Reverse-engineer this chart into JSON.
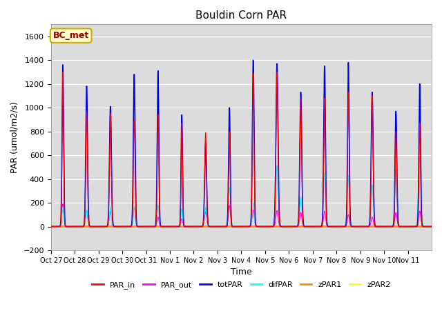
{
  "title": "Bouldin Corn PAR",
  "xlabel": "Time",
  "ylabel": "PAR (umol/m2/s)",
  "ylim": [
    -200,
    1700
  ],
  "yticks": [
    -200,
    0,
    200,
    400,
    600,
    800,
    1000,
    1200,
    1400,
    1600
  ],
  "bg_color": "#dcdcdc",
  "legend_entries": [
    "PAR_in",
    "PAR_out",
    "totPAR",
    "difPAR",
    "zPAR1",
    "zPAR2"
  ],
  "legend_colors": [
    "#ff0000",
    "#ff00ff",
    "#0000ee",
    "#00ffff",
    "#ff8800",
    "#ffff00"
  ],
  "annotation_text": "BC_met",
  "annotation_box_color": "#ffffcc",
  "annotation_text_color": "#990000",
  "annotation_edge_color": "#ccaa00",
  "n_days": 16,
  "xtick_labels": [
    "Oct 27",
    "Oct 28",
    "Oct 29",
    "Oct 30",
    "Oct 31",
    "Nov 1",
    "Nov 2",
    "Nov 3",
    "Nov 4",
    "Nov 5",
    "Nov 6",
    "Nov 7",
    "Nov 8",
    "Nov 9",
    "Nov 10",
    "Nov 11"
  ],
  "totPAR_peaks": [
    1360,
    1180,
    1010,
    1280,
    1310,
    940,
    700,
    1000,
    1400,
    1370,
    1130,
    1350,
    1380,
    1130,
    970,
    1200
  ],
  "PAR_in_peaks": [
    1300,
    970,
    950,
    900,
    940,
    870,
    790,
    800,
    1290,
    1300,
    1085,
    1080,
    1130,
    1100,
    800,
    870
  ],
  "difPAR_peaks": [
    160,
    140,
    160,
    170,
    180,
    150,
    160,
    330,
    200,
    510,
    250,
    450,
    430,
    350,
    480,
    580
  ],
  "PAR_out_peaks": [
    190,
    135,
    130,
    160,
    80,
    65,
    125,
    175,
    140,
    135,
    120,
    130,
    100,
    80,
    120,
    130
  ]
}
